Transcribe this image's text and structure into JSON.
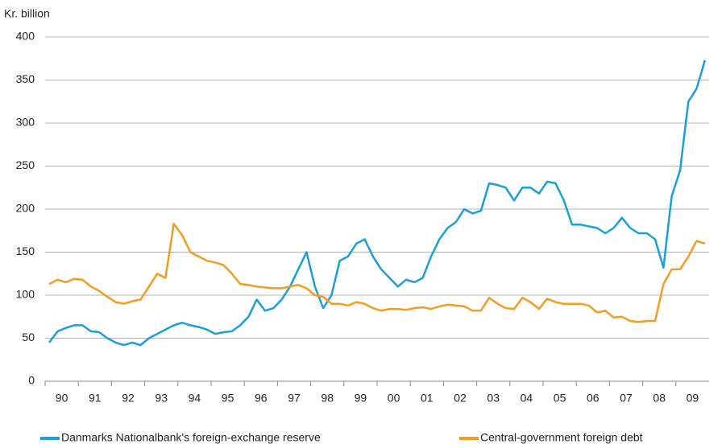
{
  "chart_data": {
    "type": "line",
    "y_label": "Kr. billion",
    "x": [
      1990.125,
      1990.375,
      1990.625,
      1990.875,
      1991.125,
      1991.375,
      1991.625,
      1991.875,
      1992.125,
      1992.375,
      1992.625,
      1992.875,
      1993.125,
      1993.375,
      1993.625,
      1993.875,
      1994.125,
      1994.375,
      1994.625,
      1994.875,
      1995.125,
      1995.375,
      1995.625,
      1995.875,
      1996.125,
      1996.375,
      1996.625,
      1996.875,
      1997.125,
      1997.375,
      1997.625,
      1997.875,
      1998.125,
      1998.375,
      1998.625,
      1998.875,
      1999.125,
      1999.375,
      1999.625,
      1999.875,
      2000.125,
      2000.375,
      2000.625,
      2000.875,
      2001.125,
      2001.375,
      2001.625,
      2001.875,
      2002.125,
      2002.375,
      2002.625,
      2002.875,
      2003.125,
      2003.375,
      2003.625,
      2003.875,
      2004.125,
      2004.375,
      2004.625,
      2004.875,
      2005.125,
      2005.375,
      2005.625,
      2005.875,
      2006.125,
      2006.375,
      2006.625,
      2006.875,
      2007.125,
      2007.375,
      2007.625,
      2007.875,
      2008.125,
      2008.375,
      2008.625,
      2008.875,
      2009.125,
      2009.375,
      2009.625,
      2009.875
    ],
    "series": [
      {
        "name": "Danmarks Nationalbank's foreign-exchange reserve",
        "color": "#1a9fd9",
        "values": [
          45,
          58,
          62,
          65,
          65,
          58,
          57,
          50,
          45,
          42,
          45,
          42,
          50,
          55,
          60,
          65,
          68,
          65,
          63,
          60,
          55,
          57,
          58,
          65,
          75,
          95,
          82,
          85,
          95,
          110,
          130,
          150,
          110,
          85,
          100,
          140,
          145,
          160,
          165,
          145,
          130,
          120,
          110,
          118,
          115,
          120,
          145,
          165,
          178,
          185,
          200,
          195,
          198,
          230,
          228,
          225,
          210,
          225,
          225,
          218,
          232,
          230,
          210,
          182,
          182,
          180,
          178,
          172,
          178,
          190,
          178,
          172,
          172,
          165,
          132,
          215,
          245,
          325,
          340,
          373
        ]
      },
      {
        "name": "Central-government foreign debt",
        "color": "#f39c1f",
        "values": [
          113,
          118,
          115,
          119,
          118,
          110,
          105,
          98,
          92,
          90,
          93,
          95,
          110,
          125,
          120,
          183,
          170,
          150,
          145,
          140,
          138,
          135,
          125,
          113,
          112,
          110,
          109,
          108,
          108,
          110,
          112,
          108,
          100,
          98,
          90,
          90,
          88,
          92,
          90,
          85,
          82,
          84,
          84,
          83,
          85,
          86,
          84,
          87,
          89,
          88,
          87,
          82,
          82,
          97,
          90,
          85,
          84,
          97,
          92,
          84,
          96,
          92,
          90,
          90,
          90,
          88,
          80,
          82,
          74,
          75,
          70,
          69,
          70,
          70,
          113,
          130,
          130,
          145,
          163,
          160
        ]
      }
    ],
    "xlim": [
      1990,
      2010
    ],
    "xticks": [
      {
        "value": 1990.5,
        "label": "90"
      },
      {
        "value": 1991.5,
        "label": "91"
      },
      {
        "value": 1992.5,
        "label": "92"
      },
      {
        "value": 1993.5,
        "label": "93"
      },
      {
        "value": 1994.5,
        "label": "94"
      },
      {
        "value": 1995.5,
        "label": "95"
      },
      {
        "value": 1996.5,
        "label": "96"
      },
      {
        "value": 1997.5,
        "label": "97"
      },
      {
        "value": 1998.5,
        "label": "98"
      },
      {
        "value": 1999.5,
        "label": "99"
      },
      {
        "value": 2000.5,
        "label": "00"
      },
      {
        "value": 2001.5,
        "label": "01"
      },
      {
        "value": 2002.5,
        "label": "02"
      },
      {
        "value": 2003.5,
        "label": "03"
      },
      {
        "value": 2004.5,
        "label": "04"
      },
      {
        "value": 2005.5,
        "label": "05"
      },
      {
        "value": 2006.5,
        "label": "06"
      },
      {
        "value": 2007.5,
        "label": "07"
      },
      {
        "value": 2008.5,
        "label": "08"
      },
      {
        "value": 2009.5,
        "label": "09"
      }
    ],
    "ylim": [
      0,
      400
    ],
    "yticks": [
      0,
      50,
      100,
      150,
      200,
      250,
      300,
      350,
      400
    ],
    "grid": true
  }
}
